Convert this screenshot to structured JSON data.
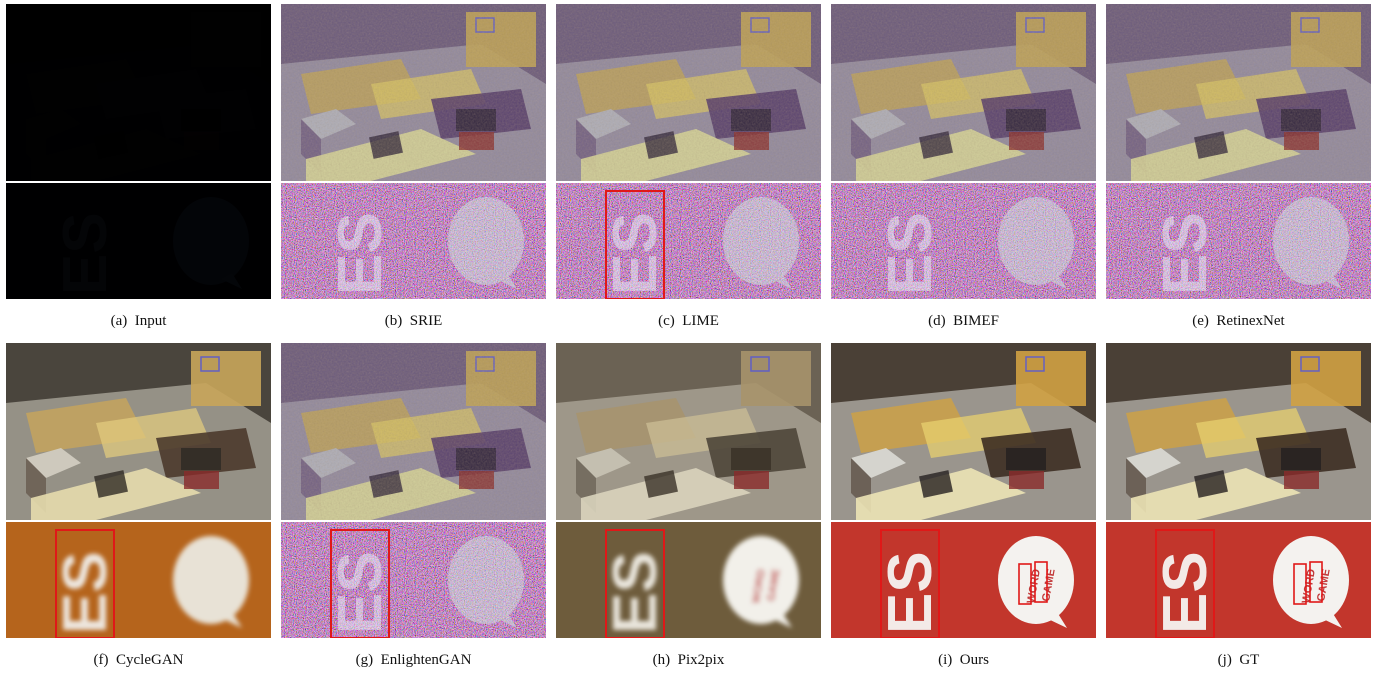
{
  "figure": {
    "panels": [
      {
        "label": "(a)",
        "name": "Input",
        "style": "dark",
        "boxes": false
      },
      {
        "label": "(b)",
        "name": "SRIE",
        "style": "noisy",
        "boxes": false
      },
      {
        "label": "(c)",
        "name": "LIME",
        "style": "noisy",
        "boxes": true
      },
      {
        "label": "(d)",
        "name": "BIMEF",
        "style": "noisy",
        "boxes": false
      },
      {
        "label": "(e)",
        "name": "RetinexNet",
        "style": "noisy",
        "boxes": false
      },
      {
        "label": "(f)",
        "name": "CycleGAN",
        "style": "orange",
        "boxes": true
      },
      {
        "label": "(g)",
        "name": "EnlightenGAN",
        "style": "noisy",
        "boxes": true
      },
      {
        "label": "(h)",
        "name": "Pix2pix",
        "style": "brown",
        "boxes": true
      },
      {
        "label": "(i)",
        "name": "Ours",
        "style": "clean",
        "boxes": true
      },
      {
        "label": "(j)",
        "name": "GT",
        "style": "clean",
        "boxes": true
      }
    ],
    "balloon_text_top": "WORD",
    "balloon_text_bottom": "GAME"
  }
}
